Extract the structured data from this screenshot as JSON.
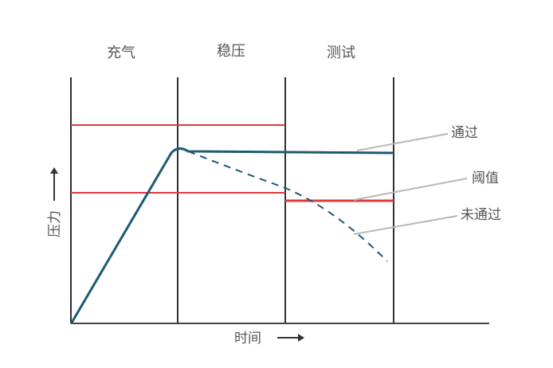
{
  "phases": [
    "充气",
    "稳压",
    "测试"
  ],
  "y_axis_label": "压力",
  "x_axis_label": "时间",
  "annotations": {
    "pass": "通过",
    "threshold": "阈值",
    "fail": "未通过"
  },
  "colors": {
    "axis": "#444444",
    "phase_divider": "#2f2f2f",
    "pressure_curve": "#1e5a72",
    "limit_line": "#e0393b",
    "leader_line": "#b8b8b8",
    "text": "#555555"
  }
}
